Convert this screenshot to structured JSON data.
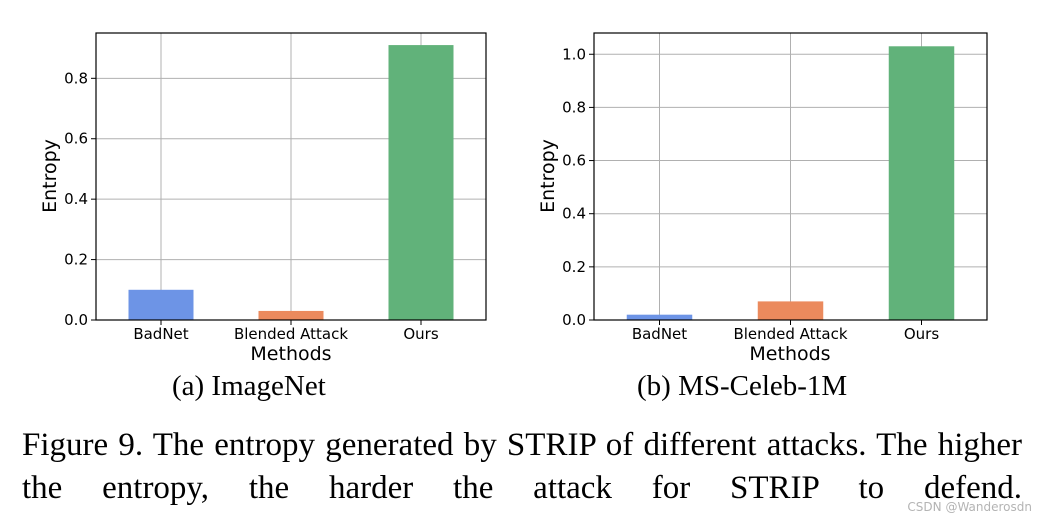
{
  "chart_data": [
    {
      "type": "bar",
      "categories": [
        "BadNet",
        "Blended Attack",
        "Ours"
      ],
      "values": [
        0.1,
        0.03,
        0.91
      ],
      "colors": [
        "#6d94e6",
        "#eb8a5d",
        "#61b27a"
      ],
      "xlabel": "Methods",
      "ylabel": "Entropy",
      "ylim": [
        0,
        0.95
      ],
      "yticks": [
        "0.0",
        "0.2",
        "0.4",
        "0.6",
        "0.8"
      ],
      "grid": true,
      "subcaption": "(a)  ImageNet"
    },
    {
      "type": "bar",
      "categories": [
        "BadNet",
        "Blended Attack",
        "Ours"
      ],
      "values": [
        0.02,
        0.07,
        1.03
      ],
      "colors": [
        "#6d94e6",
        "#eb8a5d",
        "#61b27a"
      ],
      "xlabel": "Methods",
      "ylabel": "Entropy",
      "ylim": [
        0,
        1.08
      ],
      "yticks": [
        "0.0",
        "0.2",
        "0.4",
        "0.6",
        "0.8",
        "1.0"
      ],
      "grid": true,
      "subcaption": "(b)  MS-Celeb-1M"
    }
  ],
  "caption": "Figure 9. The entropy generated by STRIP of different attacks. The higher the entropy, the harder the attack for STRIP to defend.",
  "watermark": "CSDN @Wanderosdn"
}
